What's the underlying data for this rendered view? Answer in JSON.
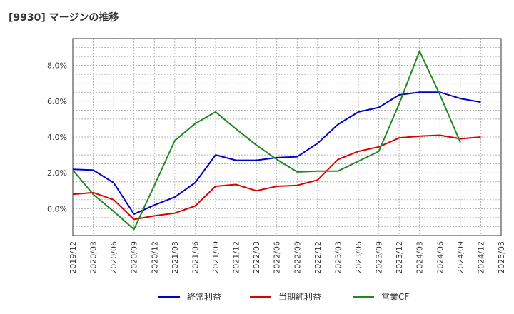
{
  "chart_data": {
    "type": "line",
    "title": "[9930]  マージンの推移",
    "xlabel": "",
    "ylabel": "",
    "x": [
      "2019/12",
      "2020/03",
      "2020/06",
      "2020/09",
      "2020/12",
      "2021/03",
      "2021/06",
      "2021/09",
      "2021/12",
      "2022/03",
      "2022/06",
      "2022/09",
      "2022/12",
      "2023/03",
      "2023/06",
      "2023/09",
      "2023/12",
      "2024/03",
      "2024/06",
      "2024/09",
      "2024/12",
      "2025/03"
    ],
    "ylim": [
      -1.5,
      9.5
    ],
    "yticks": [
      0,
      2,
      4,
      6,
      8
    ],
    "ytick_labels": [
      "0.0%",
      "2.0%",
      "4.0%",
      "6.0%",
      "8.0%"
    ],
    "grid": true,
    "legend_position": "bottom",
    "series": [
      {
        "name": "経常利益",
        "color": "#0000cc",
        "values": [
          2.2,
          2.15,
          1.45,
          -0.3,
          0.2,
          0.65,
          1.45,
          3.0,
          2.7,
          2.7,
          2.85,
          2.9,
          3.65,
          4.7,
          5.4,
          5.65,
          6.35,
          6.5,
          6.5,
          6.15,
          5.95,
          null
        ]
      },
      {
        "name": "当期純利益",
        "color": "#dd0000",
        "values": [
          0.8,
          0.9,
          0.5,
          -0.6,
          -0.4,
          -0.25,
          0.15,
          1.25,
          1.35,
          1.0,
          1.25,
          1.3,
          1.6,
          2.75,
          3.2,
          3.45,
          3.95,
          4.05,
          4.1,
          3.9,
          4.0,
          null
        ]
      },
      {
        "name": "営業CF",
        "color": "#228822",
        "values": [
          2.15,
          0.8,
          -0.15,
          -1.15,
          1.3,
          3.8,
          4.75,
          5.4,
          4.45,
          3.55,
          2.75,
          2.05,
          2.1,
          2.1,
          2.65,
          3.2,
          5.85,
          8.8,
          6.35,
          3.7,
          null,
          null
        ]
      }
    ]
  }
}
